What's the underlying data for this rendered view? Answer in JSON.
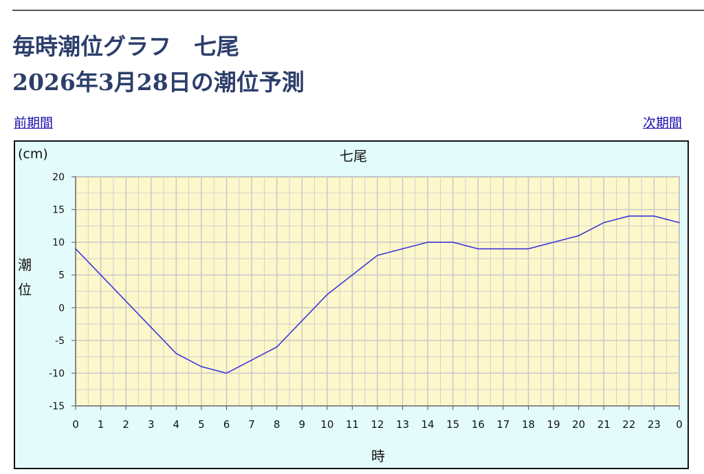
{
  "header": {
    "title_line1": "毎時潮位グラフ　七尾",
    "title_line2": "2026年3月28日の潮位予測"
  },
  "nav": {
    "prev_label": "前期間",
    "next_label": "次期間"
  },
  "colors": {
    "plot_background": "#fdf7cc",
    "chart_background": "#e3fcfb",
    "line": "#3b35d8",
    "grid": "#c8c8c8",
    "title_text": "#2c3e6b"
  },
  "chart_data": {
    "type": "line",
    "title": "七尾",
    "unit_label": "(cm)",
    "ylabel": "潮位",
    "xlabel": "時",
    "x_ticks": [
      "0",
      "1",
      "2",
      "3",
      "4",
      "5",
      "6",
      "7",
      "8",
      "9",
      "10",
      "11",
      "12",
      "13",
      "14",
      "15",
      "16",
      "17",
      "18",
      "19",
      "20",
      "21",
      "22",
      "23",
      "0"
    ],
    "y_ticks": [
      "20",
      "15",
      "10",
      "5",
      "0",
      "-5",
      "-10",
      "-15"
    ],
    "ylim": [
      -15,
      20
    ],
    "grid": true,
    "series": [
      {
        "values": [
          9,
          5,
          1,
          -3,
          -7,
          -9,
          -10,
          -8,
          -6,
          -2,
          2,
          5,
          8,
          9,
          10,
          10,
          9,
          9,
          9,
          10,
          11,
          13,
          14,
          14,
          13
        ]
      }
    ]
  }
}
